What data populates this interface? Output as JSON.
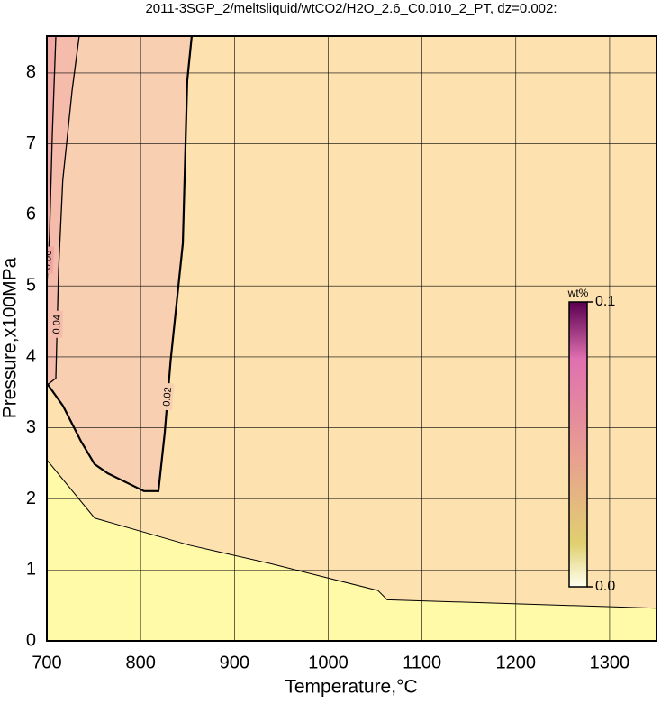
{
  "chart_data": {
    "type": "contour",
    "title": "2011-3SGP_2/meltsliquid/wtCO2/H2O_2.6_C0.010_2_PT, dz=0.002:",
    "x_label": "Temperature,°C",
    "y_label": "Pressure,x100MPa",
    "xlim": [
      700,
      1350
    ],
    "ylim": [
      0,
      8.52
    ],
    "xticks": [
      700,
      800,
      900,
      1000,
      1100,
      1200,
      1300
    ],
    "yticks": [
      0,
      1,
      2,
      3,
      4,
      5,
      6,
      7,
      8
    ],
    "grid": true,
    "background": "#fffaa8",
    "contours": [
      {
        "color": "#fde2b0",
        "x": [
          700,
          751,
          851.6,
          938,
          1053,
          1062.8,
          1350
        ],
        "y": [
          2.55,
          1.73,
          1.35,
          1.09,
          0.71,
          0.58,
          0.46
        ]
      },
      {
        "level": 0.02,
        "color": "#f9cfb2",
        "x": [
          854.5,
          849.7,
          845,
          832,
          825.7,
          819,
          803.6,
          765,
          750.9,
          736.5,
          717.3,
          700
        ],
        "y": [
          8.52,
          7.89,
          5.6,
          3.95,
          2.93,
          2.11,
          2.11,
          2.36,
          2.49,
          2.81,
          3.31,
          3.63
        ]
      },
      {
        "level": 0.04,
        "color": "#f5bcac",
        "x": [
          734.5,
          727,
          717,
          712.5,
          709.6,
          700
        ],
        "y": [
          8.52,
          7.76,
          6.49,
          5.22,
          3.7,
          3.6
        ]
      },
      {
        "level": 0.06,
        "color": "#f0a8a4",
        "x": [
          709.6,
          705.8,
          702.9,
          700
        ],
        "y": [
          8.52,
          7.12,
          5.73,
          5.0
        ]
      }
    ],
    "colorbar": {
      "label": "wt%",
      "lim": [
        0,
        0.1
      ],
      "ticks": [
        {
          "value": 0,
          "label": "0.0"
        },
        {
          "value": 0.1,
          "label": "0.1"
        }
      ]
    }
  }
}
